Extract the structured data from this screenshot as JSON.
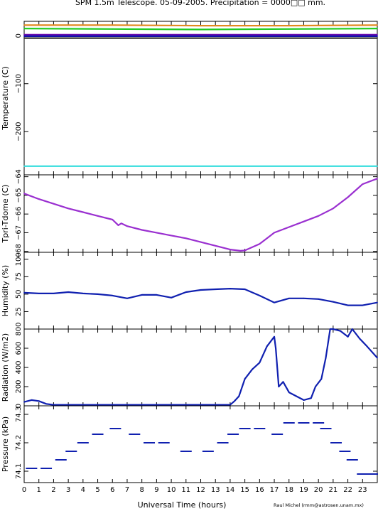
{
  "title": "SPM 1.5m Telescope. 05-09-2005. Precipitation = 0000□□ mm.",
  "xlabel": "Universal Time (hours)",
  "credit": "Raul Michel (rmm@astrosen.unam.mx)",
  "chart_data": [
    {
      "type": "line",
      "ylabel": "Temperature (C)",
      "ylim": [
        -290,
        30
      ],
      "xlim": [
        0,
        24
      ],
      "yticks": [
        0,
        -100,
        -200
      ],
      "series": [
        {
          "color": "#e08a1e",
          "x": [
            0,
            6,
            12,
            18,
            24
          ],
          "values": [
            22,
            22,
            21,
            21,
            22
          ]
        },
        {
          "color": "#22cc22",
          "x": [
            0,
            6,
            12,
            18,
            24
          ],
          "values": [
            15,
            14,
            13,
            14,
            15
          ]
        },
        {
          "color": "#6a0dad",
          "x": [
            0,
            24
          ],
          "values": [
            2,
            2
          ]
        },
        {
          "color": "#1010aa",
          "x": [
            0,
            24
          ],
          "values": [
            -1,
            -1
          ]
        },
        {
          "color": "#333333",
          "x": [
            0,
            24
          ],
          "values": [
            -5,
            -5
          ]
        },
        {
          "color": "#33dddd",
          "x": [
            0,
            24
          ],
          "values": [
            -272,
            -272
          ]
        }
      ]
    },
    {
      "type": "line",
      "ylabel": "Tpri-Tdome (C)",
      "ylim": [
        -68.05,
        -63.9
      ],
      "xlim": [
        0,
        24
      ],
      "yticks": [
        -68,
        -67,
        -66,
        -65,
        -64
      ],
      "series": [
        {
          "color": "#9a30d0",
          "x": [
            0,
            1,
            2,
            3,
            4,
            5,
            6,
            6.4,
            6.6,
            7,
            8,
            9,
            10,
            11,
            12,
            13,
            14,
            14.7,
            15,
            16,
            17,
            18,
            19,
            20,
            21,
            22,
            23,
            24
          ],
          "values": [
            -64.9,
            -65.2,
            -65.45,
            -65.7,
            -65.9,
            -66.1,
            -66.3,
            -66.6,
            -66.5,
            -66.65,
            -66.85,
            -67.0,
            -67.15,
            -67.3,
            -67.5,
            -67.7,
            -67.9,
            -67.97,
            -67.95,
            -67.6,
            -67.0,
            -66.7,
            -66.4,
            -66.1,
            -65.7,
            -65.1,
            -64.4,
            -64.1
          ]
        }
      ]
    },
    {
      "type": "line",
      "ylabel": "Humidity (%)",
      "ylim": [
        0,
        110
      ],
      "xlim": [
        0,
        24
      ],
      "yticks": [
        25,
        50,
        75,
        100
      ],
      "series": [
        {
          "color": "#1020b0",
          "x": [
            0,
            1,
            2,
            3,
            4,
            5,
            6,
            7,
            8,
            9,
            10,
            11,
            12,
            13,
            14,
            15,
            16,
            17,
            18,
            19,
            20,
            21,
            22,
            23,
            24
          ],
          "values": [
            52,
            51,
            51,
            53,
            51,
            50,
            48,
            44,
            49,
            49,
            45,
            53,
            56,
            57,
            58,
            57,
            48,
            38,
            44,
            44,
            43,
            39,
            34,
            34,
            38
          ]
        }
      ]
    },
    {
      "type": "line",
      "ylabel": "Radiation (W/m2)",
      "ylim": [
        0,
        800
      ],
      "xlim": [
        0,
        24
      ],
      "yticks": [
        0,
        200,
        400,
        600,
        800
      ],
      "series": [
        {
          "color": "#1020b0",
          "x": [
            0,
            0.5,
            1,
            1.5,
            2,
            14,
            14.3,
            14.6,
            15,
            15.5,
            16,
            16.5,
            17,
            17.1,
            17.3,
            17.6,
            18,
            18.5,
            19,
            19.5,
            19.8,
            20.2,
            20.5,
            20.8,
            21,
            21.5,
            22,
            22.3,
            22.8,
            23.3,
            24
          ],
          "values": [
            40,
            60,
            50,
            20,
            10,
            10,
            50,
            100,
            280,
            380,
            450,
            620,
            720,
            600,
            200,
            250,
            140,
            100,
            60,
            80,
            200,
            280,
            500,
            800,
            800,
            780,
            720,
            800,
            700,
            620,
            500
          ]
        }
      ]
    },
    {
      "type": "scatter",
      "ylabel": "Pressure (kPa)",
      "ylim": [
        74.06,
        74.33
      ],
      "xlim": [
        0,
        24
      ],
      "yticks": [
        74.1,
        74.2,
        74.3
      ],
      "series": [
        {
          "color": "#1020b0",
          "x": [
            0.5,
            1.5,
            2.5,
            3.2,
            4,
            5,
            6.2,
            7.5,
            8.5,
            9.5,
            11,
            12.5,
            13.5,
            14.2,
            15,
            16,
            17.2,
            18,
            19,
            20,
            20.5,
            21.2,
            21.8,
            22.3,
            23,
            23.7
          ],
          "values": [
            74.11,
            74.11,
            74.14,
            74.17,
            74.2,
            74.23,
            74.25,
            74.23,
            74.2,
            74.2,
            74.17,
            74.17,
            74.2,
            74.23,
            74.25,
            74.25,
            74.23,
            74.27,
            74.27,
            74.27,
            74.25,
            74.2,
            74.17,
            74.14,
            74.09,
            74.09
          ]
        }
      ]
    }
  ]
}
